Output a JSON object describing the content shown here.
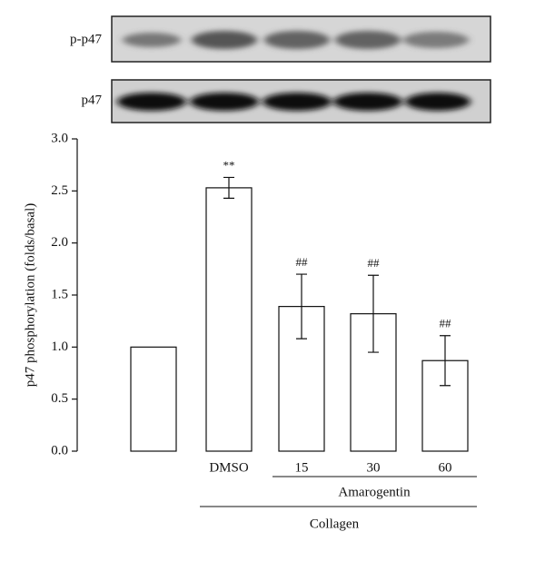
{
  "blot": {
    "rows": [
      {
        "label": "p-p47"
      },
      {
        "label": "p47"
      }
    ]
  },
  "chart_data": {
    "type": "bar",
    "ylabel": "p47 phosphorylation (folds/basal)",
    "categories": [
      null,
      "DMSO",
      "15",
      "30",
      "60"
    ],
    "values": [
      1.0,
      2.53,
      1.39,
      1.32,
      0.87
    ],
    "errors": [
      null,
      0.1,
      0.31,
      0.37,
      0.24
    ],
    "annotations": [
      null,
      "**",
      "##",
      "##",
      "##"
    ],
    "color": "#ffffff",
    "ylim": [
      0,
      3.0
    ],
    "yticks": [
      {
        "value": 0,
        "label": "0.0"
      },
      {
        "value": 0.5,
        "label": "0.5"
      },
      {
        "value": 1.0,
        "label": "1.0"
      },
      {
        "value": 1.5,
        "label": "1.5"
      },
      {
        "value": 2.0,
        "label": "2.0"
      },
      {
        "value": 2.5,
        "label": "2.5"
      },
      {
        "value": 3.0,
        "label": "3.0"
      }
    ],
    "groups": [
      {
        "label": "Amarogentin"
      },
      {
        "label": "Collagen"
      }
    ]
  }
}
